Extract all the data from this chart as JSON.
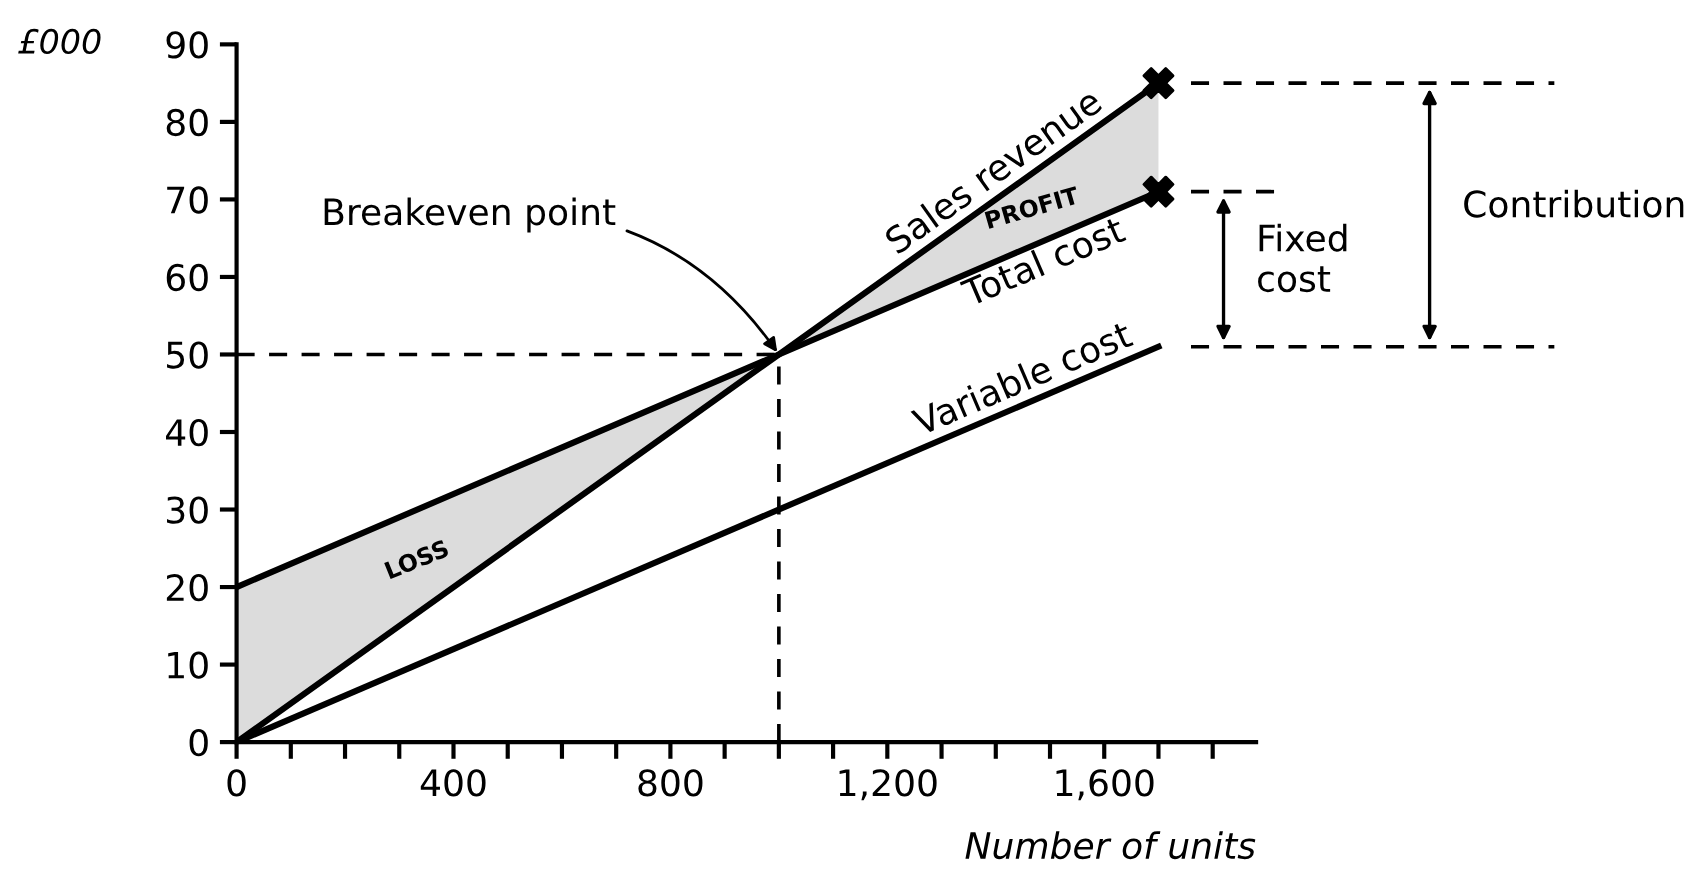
{
  "chart_data": {
    "type": "line",
    "xlabel": "Number of units",
    "ylabel": "£000",
    "xlim": [
      0,
      1880
    ],
    "ylim": [
      0,
      90
    ],
    "xticks": [
      0,
      {
        "value": 100,
        "label": null
      },
      {
        "value": 200,
        "label": null
      },
      {
        "value": 300,
        "label": null
      },
      400,
      {
        "value": 500,
        "label": null
      },
      {
        "value": 600,
        "label": null
      },
      {
        "value": 700,
        "label": null
      },
      800,
      {
        "value": 900,
        "label": null
      },
      {
        "value": 1000,
        "label": null
      },
      {
        "value": 1100,
        "label": null
      },
      {
        "value": 1200,
        "label": "1,200"
      },
      {
        "value": 1300,
        "label": null
      },
      {
        "value": 1400,
        "label": null
      },
      {
        "value": 1500,
        "label": null
      },
      {
        "value": 1600,
        "label": "1,600"
      },
      {
        "value": 1700,
        "label": null
      },
      {
        "value": 1800,
        "label": null
      }
    ],
    "yticks": [
      0,
      10,
      20,
      30,
      40,
      50,
      60,
      70,
      80,
      90
    ],
    "grid": false,
    "series": [
      {
        "name": "Sales revenue",
        "color": "#000000",
        "x": [
          0,
          1000,
          1700
        ],
        "values": [
          0,
          50,
          85
        ],
        "lower": [
          0,
          50,
          71
        ],
        "upper": [
          20,
          50,
          85
        ]
      },
      {
        "name": "Total cost",
        "color": "#000000",
        "x": [
          0,
          1000,
          1700
        ],
        "values": [
          20,
          50,
          71
        ]
      },
      {
        "name": "Variable cost",
        "color": "#000000",
        "x": [
          0,
          1700
        ],
        "values": [
          0,
          51
        ]
      },
      {
        "type": "scatter",
        "color": "#000000",
        "marker": "cross",
        "x": [
          1700,
          1700
        ],
        "values": [
          85,
          71
        ]
      }
    ],
    "ref_lines": [
      {
        "axis": "y",
        "value": 50,
        "line_style": "dashed",
        "color": "#000000"
      },
      {
        "axis": "x",
        "value": 1000,
        "line_style": "dashed",
        "color": "#000000"
      }
    ],
    "annotations": [
      {
        "text": "Breakeven point",
        "x": 1000,
        "y": 50
      },
      "LOSS",
      "PROFIT",
      "Fixed\ncost",
      "Contribution"
    ]
  }
}
